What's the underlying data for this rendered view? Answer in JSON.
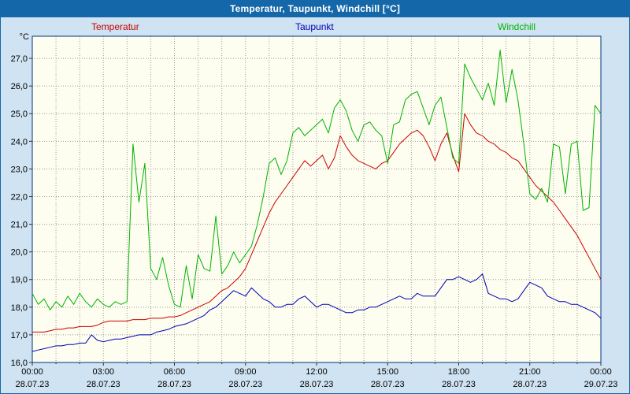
{
  "window": {
    "title": "Temperatur, Taupunkt, Windchill [°C]"
  },
  "colors": {
    "titlebar_bg": "#1467a8",
    "titlebar_text": "#ffffff",
    "page_bg": "#cfe3f2",
    "plot_bg": "#fdfdf0",
    "frame": "#00337f",
    "grid": "#9a9a9a",
    "tick": "#333333",
    "label": "#000000",
    "temperatur": "#cc0000",
    "taupunkt": "#0000b4",
    "windchill": "#00b400"
  },
  "chart_data": {
    "type": "line",
    "title": "Temperatur, Taupunkt, Windchill [°C]",
    "ylabel": "°C",
    "xlabel": "",
    "ylim": [
      16.0,
      27.8
    ],
    "x_hours_range": [
      0,
      24
    ],
    "grid": true,
    "legend_position": "top",
    "sample_interval_minutes": 15,
    "yticks": [
      {
        "v": 16.0,
        "label": "16,0"
      },
      {
        "v": 17.0,
        "label": "17,0"
      },
      {
        "v": 18.0,
        "label": "18,0"
      },
      {
        "v": 19.0,
        "label": "19,0"
      },
      {
        "v": 20.0,
        "label": "20,0"
      },
      {
        "v": 21.0,
        "label": "21,0"
      },
      {
        "v": 22.0,
        "label": "22,0"
      },
      {
        "v": 23.0,
        "label": "23,0"
      },
      {
        "v": 24.0,
        "label": "24,0"
      },
      {
        "v": 25.0,
        "label": "25,0"
      },
      {
        "v": 26.0,
        "label": "26,0"
      },
      {
        "v": 27.0,
        "label": "27,0"
      }
    ],
    "xticks": [
      {
        "h": 0,
        "time": "00:00",
        "date": "28.07.23"
      },
      {
        "h": 3,
        "time": "03:00",
        "date": "28.07.23"
      },
      {
        "h": 6,
        "time": "06:00",
        "date": "28.07.23"
      },
      {
        "h": 9,
        "time": "09:00",
        "date": "28.07.23"
      },
      {
        "h": 12,
        "time": "12:00",
        "date": "28.07.23"
      },
      {
        "h": 15,
        "time": "15:00",
        "date": "28.07.23"
      },
      {
        "h": 18,
        "time": "18:00",
        "date": "28.07.23"
      },
      {
        "h": 21,
        "time": "21:00",
        "date": "28.07.23"
      },
      {
        "h": 24,
        "time": "00:00",
        "date": "29.07.23"
      }
    ],
    "series": [
      {
        "name": "Temperatur",
        "color_key": "temperatur",
        "values": [
          17.1,
          17.1,
          17.1,
          17.15,
          17.2,
          17.2,
          17.25,
          17.25,
          17.3,
          17.3,
          17.3,
          17.35,
          17.45,
          17.5,
          17.5,
          17.5,
          17.5,
          17.55,
          17.55,
          17.55,
          17.6,
          17.6,
          17.6,
          17.65,
          17.65,
          17.7,
          17.8,
          17.9,
          18.0,
          18.1,
          18.2,
          18.4,
          18.6,
          18.7,
          18.9,
          19.1,
          19.4,
          19.9,
          20.4,
          20.9,
          21.4,
          21.8,
          22.1,
          22.4,
          22.7,
          23.0,
          23.3,
          23.1,
          23.3,
          23.5,
          23.0,
          23.4,
          24.2,
          23.8,
          23.5,
          23.3,
          23.2,
          23.1,
          23.0,
          23.2,
          23.3,
          23.6,
          23.9,
          24.1,
          24.3,
          24.4,
          24.2,
          23.8,
          23.3,
          23.9,
          24.3,
          23.5,
          22.9,
          25.0,
          24.6,
          24.3,
          24.2,
          24.0,
          23.9,
          23.7,
          23.6,
          23.4,
          23.3,
          23.0,
          22.7,
          22.4,
          22.2,
          22.0,
          21.8,
          21.5,
          21.2,
          20.9,
          20.6,
          20.2,
          19.8,
          19.4,
          19.0
        ]
      },
      {
        "name": "Taupunkt",
        "color_key": "taupunkt",
        "values": [
          16.4,
          16.45,
          16.5,
          16.55,
          16.6,
          16.6,
          16.65,
          16.65,
          16.7,
          16.7,
          17.0,
          16.8,
          16.75,
          16.8,
          16.85,
          16.85,
          16.9,
          16.95,
          17.0,
          17.0,
          17.0,
          17.1,
          17.15,
          17.2,
          17.3,
          17.35,
          17.4,
          17.5,
          17.6,
          17.7,
          17.9,
          18.0,
          18.2,
          18.4,
          18.6,
          18.5,
          18.4,
          18.7,
          18.5,
          18.3,
          18.2,
          18.0,
          18.0,
          18.1,
          18.1,
          18.3,
          18.4,
          18.2,
          18.0,
          18.1,
          18.1,
          18.0,
          17.9,
          17.8,
          17.8,
          17.9,
          17.9,
          18.0,
          18.0,
          18.1,
          18.2,
          18.3,
          18.4,
          18.3,
          18.3,
          18.5,
          18.4,
          18.4,
          18.4,
          18.7,
          19.0,
          19.0,
          19.1,
          19.0,
          18.9,
          19.0,
          19.2,
          18.5,
          18.4,
          18.3,
          18.3,
          18.2,
          18.3,
          18.6,
          18.9,
          18.8,
          18.7,
          18.4,
          18.3,
          18.2,
          18.2,
          18.1,
          18.1,
          18.0,
          17.9,
          17.8,
          17.6
        ]
      },
      {
        "name": "Windchill",
        "color_key": "windchill",
        "values": [
          18.5,
          18.1,
          18.3,
          17.9,
          18.2,
          18.0,
          18.4,
          18.1,
          18.5,
          18.2,
          18.0,
          18.3,
          18.1,
          18.0,
          18.2,
          18.1,
          18.2,
          23.9,
          21.8,
          23.2,
          19.4,
          19.0,
          19.8,
          18.8,
          18.1,
          18.0,
          19.5,
          18.3,
          19.9,
          19.4,
          19.3,
          21.3,
          19.2,
          19.5,
          20.0,
          19.6,
          19.9,
          20.2,
          21.0,
          22.0,
          23.2,
          23.4,
          22.8,
          23.3,
          24.3,
          24.5,
          24.2,
          24.4,
          24.6,
          24.8,
          24.3,
          25.2,
          25.5,
          25.1,
          24.4,
          24.0,
          24.6,
          24.7,
          24.4,
          24.2,
          23.2,
          24.6,
          24.7,
          25.5,
          25.7,
          25.8,
          25.2,
          24.6,
          25.3,
          25.6,
          24.5,
          23.4,
          23.2,
          26.8,
          26.3,
          25.9,
          25.5,
          26.1,
          25.3,
          27.3,
          25.4,
          26.6,
          25.5,
          23.9,
          22.1,
          21.9,
          22.3,
          21.8,
          23.9,
          23.8,
          22.1,
          23.9,
          24.0,
          21.5,
          21.6,
          25.3,
          25.0
        ]
      }
    ]
  }
}
